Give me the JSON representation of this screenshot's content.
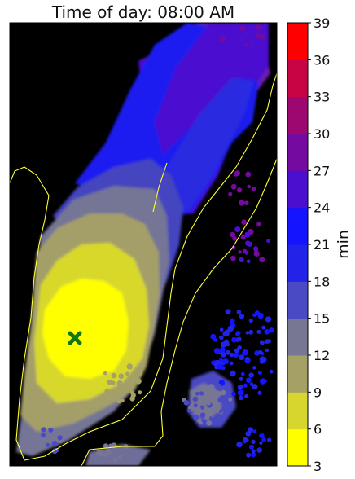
{
  "chart_data": {
    "type": "heatmap",
    "title": "Time of day: 08:00 AM",
    "colorbar": {
      "label": "min",
      "ticks": [
        "3",
        "6",
        "9",
        "12",
        "15",
        "18",
        "21",
        "24",
        "27",
        "30",
        "33",
        "36",
        "39"
      ],
      "range": [
        3,
        39
      ],
      "bands": [
        {
          "from": 3,
          "to": 6,
          "color": "#ffff00"
        },
        {
          "from": 6,
          "to": 9,
          "color": "#d6d62e"
        },
        {
          "from": 9,
          "to": 12,
          "color": "#a5a066"
        },
        {
          "from": 12,
          "to": 15,
          "color": "#777794"
        },
        {
          "from": 15,
          "to": 18,
          "color": "#4a4ac4"
        },
        {
          "from": 18,
          "to": 21,
          "color": "#2222e8"
        },
        {
          "from": 21,
          "to": 24,
          "color": "#1414ff"
        },
        {
          "from": 24,
          "to": 27,
          "color": "#4b10cf"
        },
        {
          "from": 27,
          "to": 30,
          "color": "#750aa0"
        },
        {
          "from": 30,
          "to": 33,
          "color": "#9c0870"
        },
        {
          "from": 33,
          "to": 36,
          "color": "#c80444"
        },
        {
          "from": 36,
          "to": 39,
          "color": "#ff0000"
        }
      ]
    },
    "origin_marker": {
      "symbol": "X",
      "color": "#117711"
    },
    "background": "#000000",
    "coastline_color": "#ffff33"
  }
}
